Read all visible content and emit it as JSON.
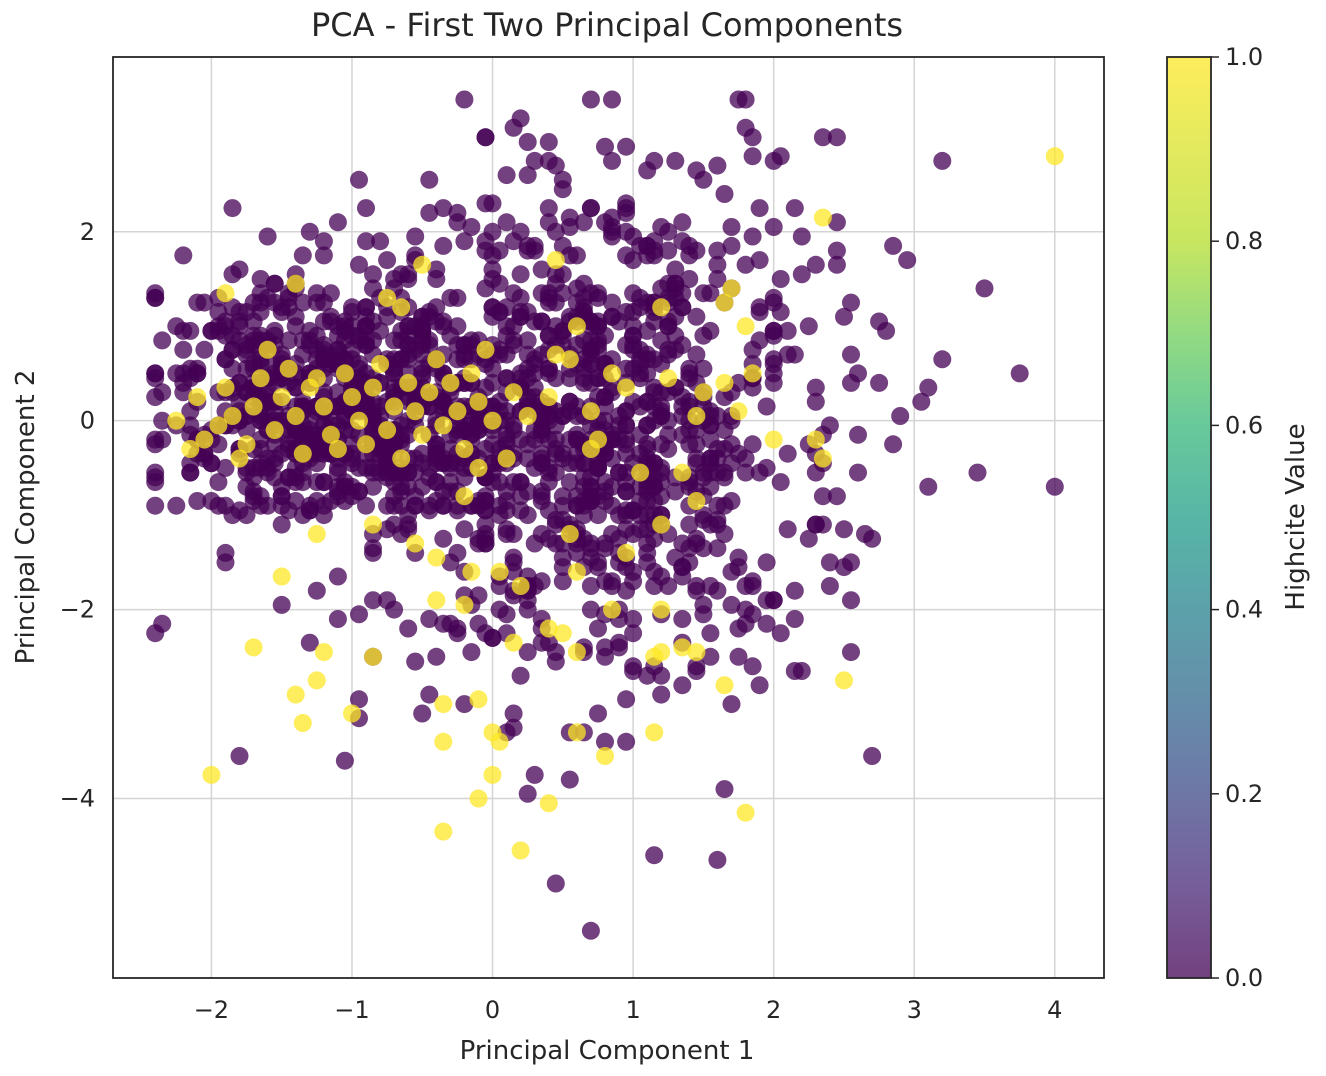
{
  "chart_data": {
    "type": "scatter",
    "title": "PCA - First Two Principal Components",
    "xlabel": "Principal Component 1",
    "ylabel": "Principal Component 2",
    "xlim": [
      -2.7,
      4.35
    ],
    "ylim": [
      -5.9,
      3.85
    ],
    "xticks": [
      -2,
      -1,
      0,
      1,
      2,
      3,
      4
    ],
    "yticks": [
      -4,
      -2,
      0,
      2
    ],
    "grid": true,
    "colorbar": {
      "label": "Highcite Value",
      "min": 0.0,
      "max": 1.0,
      "ticks": [
        0.0,
        0.2,
        0.4,
        0.6,
        0.8,
        1.0
      ],
      "colormap": "viridis"
    },
    "colors": {
      "class_0": "#440154",
      "class_1": "#fde725"
    },
    "alpha": 0.75,
    "points_class_1": [
      [
        4.0,
        2.8
      ],
      [
        2.35,
        2.15
      ],
      [
        1.8,
        1.0
      ],
      [
        2.3,
        -0.2
      ],
      [
        2.35,
        -0.4
      ],
      [
        2.5,
        -2.75
      ],
      [
        1.65,
        -2.8
      ],
      [
        1.8,
        -4.15
      ],
      [
        1.2,
        -2.0
      ],
      [
        1.15,
        -2.5
      ],
      [
        1.2,
        -2.45
      ],
      [
        1.45,
        -2.45
      ],
      [
        1.35,
        -2.4
      ],
      [
        1.15,
        -3.3
      ],
      [
        0.8,
        -3.55
      ],
      [
        0.4,
        -4.05
      ],
      [
        0.6,
        -3.3
      ],
      [
        0.2,
        -4.55
      ],
      [
        0.0,
        -3.75
      ],
      [
        -0.1,
        -4.0
      ],
      [
        0.0,
        -3.3
      ],
      [
        0.05,
        -3.4
      ],
      [
        -0.1,
        -2.95
      ],
      [
        -0.35,
        -3.0
      ],
      [
        -0.35,
        -3.4
      ],
      [
        -0.35,
        -4.35
      ],
      [
        -1.35,
        -3.2
      ],
      [
        -1.2,
        -2.45
      ],
      [
        -1.25,
        -2.75
      ],
      [
        -1.0,
        -3.1
      ],
      [
        -0.85,
        -2.5
      ],
      [
        -1.7,
        -2.4
      ],
      [
        -2.0,
        -3.75
      ],
      [
        -1.4,
        -2.9
      ],
      [
        -1.5,
        -1.65
      ],
      [
        -1.25,
        -1.2
      ],
      [
        -0.85,
        -1.1
      ],
      [
        -0.55,
        -1.3
      ],
      [
        -0.4,
        -1.9
      ],
      [
        -0.4,
        -1.45
      ],
      [
        -0.2,
        -1.95
      ],
      [
        -0.15,
        -1.6
      ],
      [
        0.05,
        -1.6
      ],
      [
        0.2,
        -1.75
      ],
      [
        0.15,
        -2.35
      ],
      [
        0.4,
        -2.2
      ],
      [
        0.5,
        -2.25
      ],
      [
        0.6,
        -2.45
      ],
      [
        0.85,
        -2.0
      ],
      [
        0.6,
        -1.6
      ],
      [
        0.55,
        -1.2
      ],
      [
        0.7,
        -0.3
      ],
      [
        0.95,
        -1.4
      ],
      [
        1.05,
        -0.55
      ],
      [
        1.2,
        -1.1
      ],
      [
        1.35,
        -0.55
      ],
      [
        1.45,
        -0.85
      ],
      [
        0.75,
        -0.2
      ],
      [
        -0.5,
        1.65
      ],
      [
        -1.4,
        1.45
      ],
      [
        -1.9,
        1.35
      ],
      [
        -0.75,
        1.3
      ],
      [
        -0.65,
        1.2
      ],
      [
        0.45,
        1.7
      ],
      [
        0.6,
        1.0
      ],
      [
        1.2,
        1.2
      ],
      [
        1.65,
        1.25
      ],
      [
        1.7,
        1.4
      ],
      [
        0.45,
        0.7
      ],
      [
        0.55,
        0.65
      ],
      [
        0.4,
        0.25
      ],
      [
        0.25,
        0.05
      ],
      [
        0.7,
        0.1
      ],
      [
        0.85,
        0.5
      ],
      [
        0.95,
        0.35
      ],
      [
        1.25,
        0.45
      ],
      [
        1.5,
        0.3
      ],
      [
        1.65,
        0.4
      ],
      [
        1.85,
        0.5
      ],
      [
        1.75,
        0.1
      ],
      [
        1.45,
        0.05
      ],
      [
        2.0,
        -0.2
      ],
      [
        -2.25,
        0.0
      ],
      [
        -2.1,
        0.25
      ],
      [
        -2.05,
        -0.2
      ],
      [
        -1.9,
        0.35
      ],
      [
        -1.85,
        0.05
      ],
      [
        -1.75,
        -0.25
      ],
      [
        -1.65,
        0.45
      ],
      [
        -1.6,
        0.75
      ],
      [
        -1.5,
        0.25
      ],
      [
        -1.4,
        0.05
      ],
      [
        -1.35,
        -0.35
      ],
      [
        -1.3,
        0.35
      ],
      [
        -1.2,
        0.15
      ],
      [
        -1.15,
        -0.15
      ],
      [
        -1.05,
        0.5
      ],
      [
        -1.0,
        0.25
      ],
      [
        -0.95,
        0.0
      ],
      [
        -0.9,
        -0.25
      ],
      [
        -0.85,
        0.35
      ],
      [
        -0.8,
        0.6
      ],
      [
        -0.75,
        -0.1
      ],
      [
        -0.7,
        0.15
      ],
      [
        -0.6,
        0.4
      ],
      [
        -0.55,
        0.1
      ],
      [
        -0.5,
        -0.15
      ],
      [
        -0.45,
        0.3
      ],
      [
        -0.4,
        0.65
      ],
      [
        -0.35,
        -0.05
      ],
      [
        -0.3,
        0.4
      ],
      [
        -0.25,
        0.1
      ],
      [
        -0.2,
        -0.3
      ],
      [
        -0.15,
        0.5
      ],
      [
        -0.1,
        0.2
      ],
      [
        -0.05,
        0.75
      ],
      [
        0.0,
        0.0
      ],
      [
        0.1,
        -0.4
      ],
      [
        0.15,
        0.3
      ],
      [
        -1.95,
        -0.05
      ],
      [
        -1.8,
        -0.4
      ],
      [
        -1.55,
        -0.1
      ],
      [
        -1.45,
        0.55
      ],
      [
        -1.1,
        -0.3
      ],
      [
        -0.65,
        -0.4
      ],
      [
        -0.2,
        -0.8
      ],
      [
        -0.1,
        -0.5
      ],
      [
        -1.7,
        0.15
      ],
      [
        -1.25,
        0.45
      ],
      [
        -2.15,
        -0.3
      ]
    ]
  }
}
